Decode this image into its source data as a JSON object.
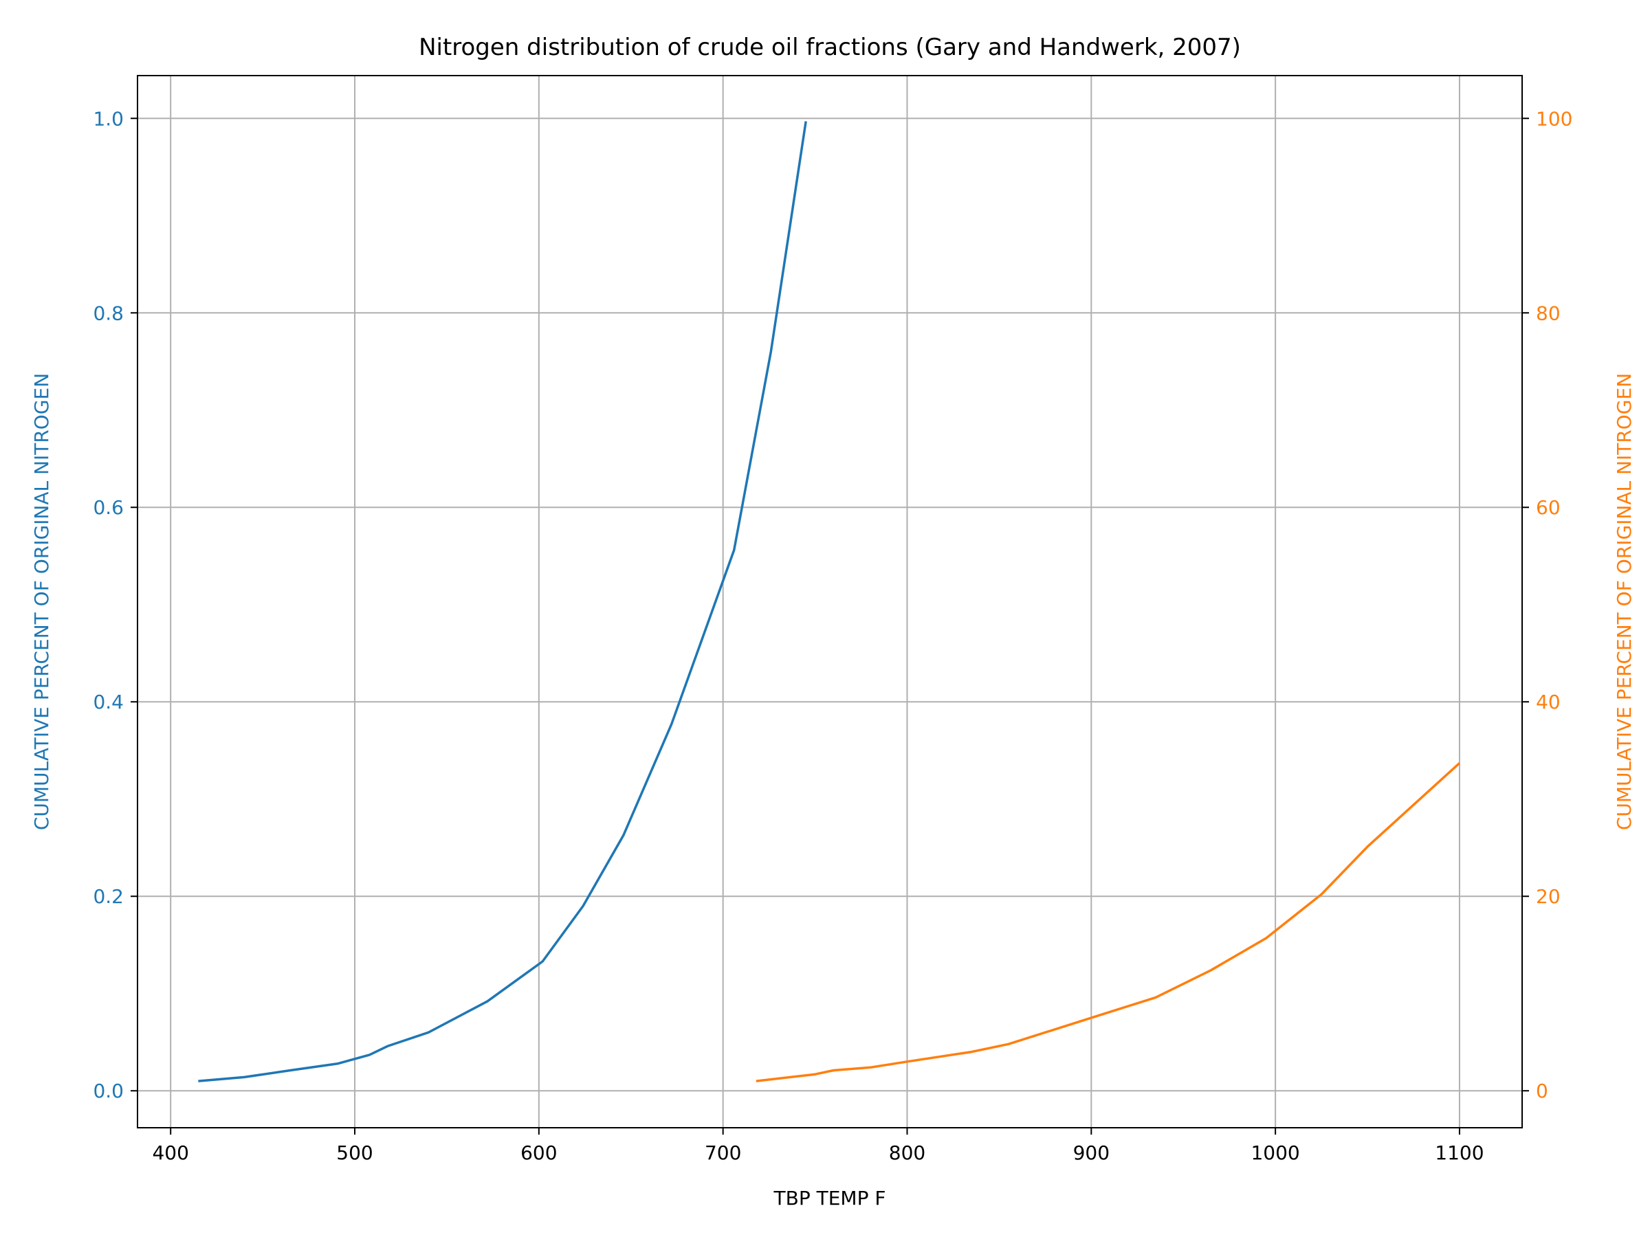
{
  "chart_data": {
    "type": "line",
    "title": "Nitrogen distribution of crude oil fractions (Gary and Handwerk, 2007)",
    "xlabel": "TBP TEMP F",
    "ylabel_left": "CUMULATIVE PERCENT OF ORIGINAL NITROGEN",
    "ylabel_right": "CUMULATIVE PERCENT OF ORIGINAL NITROGEN",
    "xlim": [
      382,
      1134
    ],
    "ylim_left": [
      -0.038,
      1.044
    ],
    "ylim_right": [
      -3.8,
      104.4
    ],
    "x_ticks": [
      "400",
      "500",
      "600",
      "700",
      "800",
      "900",
      "1000",
      "1100"
    ],
    "x_tick_values": [
      400,
      500,
      600,
      700,
      800,
      900,
      1000,
      1100
    ],
    "y_ticks_left": [
      "0.0",
      "0.2",
      "0.4",
      "0.6",
      "0.8",
      "1.0"
    ],
    "y_tick_values_left": [
      0,
      0.2,
      0.4,
      0.6,
      0.8,
      1.0
    ],
    "y_ticks_right": [
      "0",
      "20",
      "40",
      "60",
      "80",
      "100"
    ],
    "y_tick_values_right": [
      0,
      20,
      40,
      60,
      80,
      100
    ],
    "grid": true,
    "colors": {
      "left": "#1f77b4",
      "right": "#ff7f0e"
    },
    "series": [
      {
        "axis": "left",
        "color": "#1f77b4",
        "x": [
          415,
          440,
          465,
          491,
          508,
          518,
          540,
          572,
          602,
          624,
          646,
          672,
          706,
          726,
          745
        ],
        "y": [
          0.01,
          0.014,
          0.021,
          0.028,
          0.037,
          0.046,
          0.06,
          0.092,
          0.133,
          0.19,
          0.263,
          0.377,
          0.556,
          0.76,
          0.997
        ]
      },
      {
        "axis": "right",
        "color": "#ff7f0e",
        "x": [
          718,
          750,
          760,
          780,
          800,
          835,
          855,
          900,
          935,
          965,
          995,
          1025,
          1050,
          1100
        ],
        "y": [
          1.0,
          1.7,
          2.1,
          2.4,
          3.0,
          4.0,
          4.8,
          7.5,
          9.6,
          12.4,
          15.7,
          20.2,
          25.1,
          33.7
        ]
      }
    ]
  }
}
